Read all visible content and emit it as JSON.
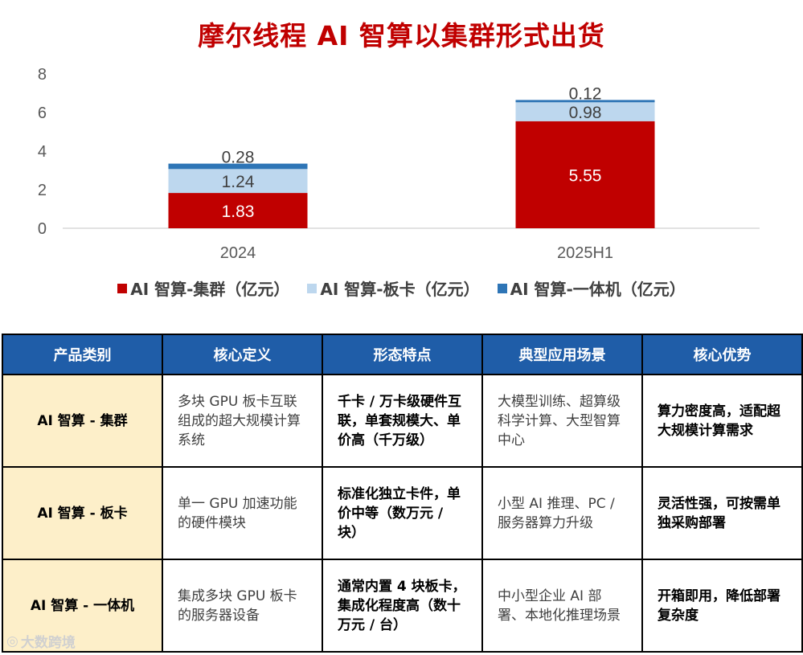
{
  "title": "摩尔线程 AI 智算以集群形式出货",
  "chart_data": {
    "type": "bar",
    "stacked": true,
    "categories": [
      "2024",
      "2025H1"
    ],
    "series": [
      {
        "name": "AI 智算-集群（亿元）",
        "values": [
          1.83,
          5.55
        ],
        "color": "#c00000",
        "label_color": "#ffffff"
      },
      {
        "name": "AI 智算-板卡（亿元）",
        "values": [
          1.24,
          0.98
        ],
        "color": "#bdd7ee",
        "label_color": "#404040"
      },
      {
        "name": "AI 智算-一体机（亿元）",
        "values": [
          0.28,
          0.12
        ],
        "color": "#2e75b6",
        "label_color": "#404040"
      }
    ],
    "yticks": [
      0,
      2,
      4,
      6,
      8
    ],
    "ylim": [
      0,
      8
    ],
    "grid": false,
    "legend_position": "bottom"
  },
  "table": {
    "headers": [
      "产品类别",
      "核心定义",
      "形态特点",
      "典型应用场景",
      "核心优势"
    ],
    "rows": [
      [
        "AI 智算 - 集群",
        "多块 GPU 板卡互联组成的超大规模计算系统",
        "千卡 / 万卡级硬件互联，单套规模大、单价高（千万级）",
        "大模型训练、超算级科学计算、大型智算中心",
        "算力密度高，适配超大规模计算需求"
      ],
      [
        "AI 智算 - 板卡",
        "单一 GPU 加速功能的硬件模块",
        "标准化独立卡件，单价中等（数万元 / 块）",
        "小型 AI 推理、PC / 服务器算力升级",
        "灵活性强，可按需单独采购部署"
      ],
      [
        "AI 智算 - 一体机",
        "集成多块 GPU 板卡的服务器设备",
        "通常内置 4 块板卡，集成化程度高（数十万元 / 台）",
        "中小型企业 AI 部署、本地化推理场景",
        "开箱即用，降低部署复杂度"
      ]
    ]
  },
  "watermark": "大数跨境"
}
